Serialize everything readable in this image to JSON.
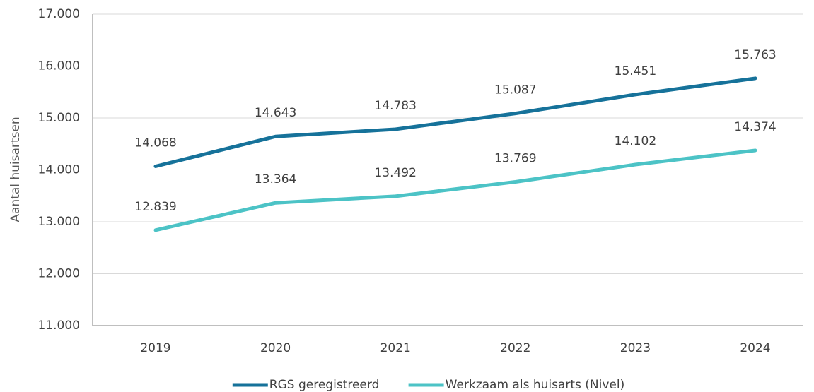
{
  "chart_data": {
    "type": "line",
    "y_label": "Aantal huisartsen",
    "categories": [
      "2019",
      "2020",
      "2021",
      "2022",
      "2023",
      "2024"
    ],
    "series": [
      {
        "name": "RGS geregistreerd",
        "color": "#16729a",
        "values": [
          14068,
          14643,
          14783,
          15087,
          15451,
          15763
        ],
        "value_labels": [
          "14.068",
          "14.643",
          "14.783",
          "15.087",
          "15.451",
          "15.763"
        ]
      },
      {
        "name": "Werkzaam als huisarts (Nivel)",
        "color": "#4cc3c6",
        "values": [
          12839,
          13364,
          13492,
          13769,
          14102,
          14374
        ],
        "value_labels": [
          "12.839",
          "13.364",
          "13.492",
          "13.769",
          "14.102",
          "14.374"
        ]
      }
    ],
    "ylim": [
      11000,
      17000
    ],
    "yticks": [
      {
        "value": 11000,
        "label": "11.000"
      },
      {
        "value": 12000,
        "label": "12.000"
      },
      {
        "value": 13000,
        "label": "13.000"
      },
      {
        "value": 14000,
        "label": "14.000"
      },
      {
        "value": 15000,
        "label": "15.000"
      },
      {
        "value": 16000,
        "label": "16.000"
      },
      {
        "value": 17000,
        "label": "17.000"
      }
    ],
    "grid": true,
    "legend": "bottom"
  }
}
